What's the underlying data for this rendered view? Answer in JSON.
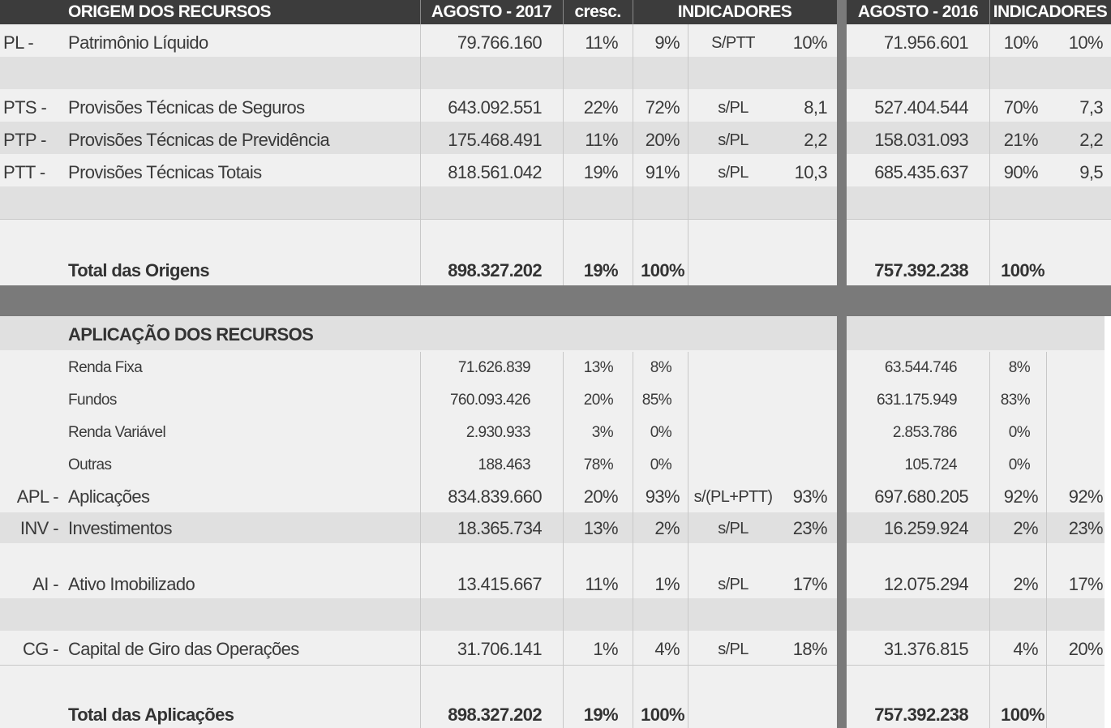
{
  "origem": {
    "header": {
      "title": "ORIGEM DOS RECURSOS",
      "col_2017": "AGOSTO - 2017",
      "cresc": "cresc.",
      "indicadores": "INDICADORES",
      "col_2016": "AGOSTO - 2016",
      "indicadores_2016": "INDICADORES"
    },
    "rows": [
      {
        "code": "PL -",
        "label": "Patrimônio Líquido",
        "v2017": "79.766.160",
        "cresc": "11%",
        "pct": "9%",
        "ind_label": "S/PTT",
        "ind_val": "10%",
        "v2016": "71.956.601",
        "pct2016": "10%",
        "ind2016": "10%"
      },
      {
        "code": "PTS -",
        "label": "Provisões Técnicas de Seguros",
        "v2017": "643.092.551",
        "cresc": "22%",
        "pct": "72%",
        "ind_label": "s/PL",
        "ind_val": "8,1",
        "v2016": "527.404.544",
        "pct2016": "70%",
        "ind2016": "7,3"
      },
      {
        "code": "PTP -",
        "label": "Provisões Técnicas de Previdência",
        "v2017": "175.468.491",
        "cresc": "11%",
        "pct": "20%",
        "ind_label": "s/PL",
        "ind_val": "2,2",
        "v2016": "158.031.093",
        "pct2016": "21%",
        "ind2016": "2,2"
      },
      {
        "code": "PTT -",
        "label": "Provisões Técnicas Totais",
        "v2017": "818.561.042",
        "cresc": "19%",
        "pct": "91%",
        "ind_label": "s/PL",
        "ind_val": "10,3",
        "v2016": "685.435.637",
        "pct2016": "90%",
        "ind2016": "9,5"
      }
    ],
    "total": {
      "label": "Total das Origens",
      "v2017": "898.327.202",
      "cresc": "19%",
      "pct": "100%",
      "v2016": "757.392.238",
      "pct2016": "100%"
    }
  },
  "aplicacao": {
    "title": "APLICAÇÃO DOS RECURSOS",
    "sub": [
      {
        "label": "Renda Fixa",
        "v2017": "71.626.839",
        "cresc": "13%",
        "pct": "8%",
        "v2016": "63.544.746",
        "pct2016": "8%"
      },
      {
        "label": "Fundos",
        "v2017": "760.093.426",
        "cresc": "20%",
        "pct": "85%",
        "v2016": "631.175.949",
        "pct2016": "83%"
      },
      {
        "label": "Renda Variável",
        "v2017": "2.930.933",
        "cresc": "3%",
        "pct": "0%",
        "v2016": "2.853.786",
        "pct2016": "0%"
      },
      {
        "label": "Outras",
        "v2017": "188.463",
        "cresc": "78%",
        "pct": "0%",
        "v2016": "105.724",
        "pct2016": "0%"
      }
    ],
    "rows": [
      {
        "code": "APL -",
        "label": "Aplicações",
        "v2017": "834.839.660",
        "cresc": "20%",
        "pct": "93%",
        "ind_label": "s/(PL+PTT)",
        "ind_val": "93%",
        "v2016": "697.680.205",
        "pct2016": "92%",
        "ind2016": "92%"
      },
      {
        "code": "INV -",
        "label": "Investimentos",
        "v2017": "18.365.734",
        "cresc": "13%",
        "pct": "2%",
        "ind_label": "s/PL",
        "ind_val": "23%",
        "v2016": "16.259.924",
        "pct2016": "2%",
        "ind2016": "23%"
      },
      {
        "code": "AI -",
        "label": "Ativo Imobilizado",
        "v2017": "13.415.667",
        "cresc": "11%",
        "pct": "1%",
        "ind_label": "s/PL",
        "ind_val": "17%",
        "v2016": "12.075.294",
        "pct2016": "2%",
        "ind2016": "17%"
      },
      {
        "code": "CG -",
        "label": "Capital de Giro das Operações",
        "v2017": "31.706.141",
        "cresc": "1%",
        "pct": "4%",
        "ind_label": "s/PL",
        "ind_val": "18%",
        "v2016": "31.376.815",
        "pct2016": "4%",
        "ind2016": "20%"
      }
    ],
    "total": {
      "label": "Total das Aplicações",
      "v2017": "898.327.202",
      "cresc": "19%",
      "pct": "100%",
      "v2016": "757.392.238",
      "pct2016": "100%"
    }
  }
}
